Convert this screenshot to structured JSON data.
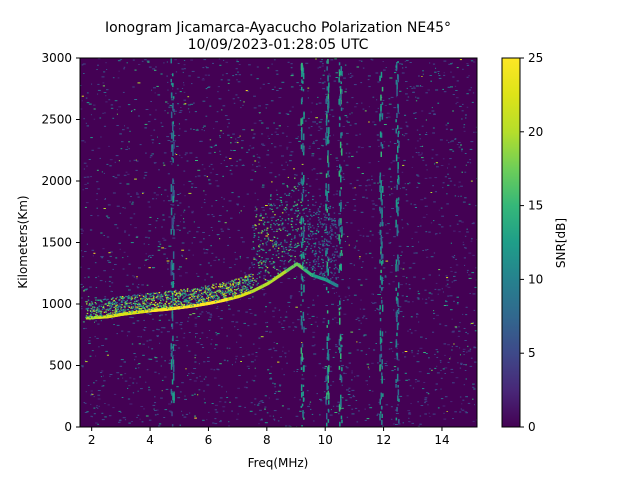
{
  "chart_data": {
    "type": "heatmap",
    "title": "Ionogram Jicamarca-Ayacucho Polarization NE45°",
    "subtitle": "10/09/2023-01:28:05 UTC",
    "xlabel": "Freq(MHz)",
    "ylabel": "Kilometers(Km)",
    "xlim": [
      1.6,
      15.2
    ],
    "ylim": [
      0,
      3000
    ],
    "xticks": [
      2,
      4,
      6,
      8,
      10,
      12,
      14
    ],
    "yticks": [
      0,
      500,
      1000,
      1500,
      2000,
      2500,
      3000
    ],
    "grid": false,
    "colorscale": "viridis",
    "colorbar": {
      "label": "SNR[dB]",
      "min": 0,
      "max": 25,
      "ticks": [
        0,
        5,
        10,
        15,
        20,
        25
      ]
    },
    "trace_points": [
      {
        "freq": 1.8,
        "range_km": 890,
        "snr": 20
      },
      {
        "freq": 2.5,
        "range_km": 900,
        "snr": 22
      },
      {
        "freq": 3.0,
        "range_km": 920,
        "snr": 22
      },
      {
        "freq": 3.5,
        "range_km": 935,
        "snr": 23
      },
      {
        "freq": 4.0,
        "range_km": 950,
        "snr": 24
      },
      {
        "freq": 4.5,
        "range_km": 960,
        "snr": 24
      },
      {
        "freq": 5.0,
        "range_km": 975,
        "snr": 24
      },
      {
        "freq": 5.5,
        "range_km": 990,
        "snr": 24
      },
      {
        "freq": 6.0,
        "range_km": 1010,
        "snr": 24
      },
      {
        "freq": 6.5,
        "range_km": 1035,
        "snr": 24
      },
      {
        "freq": 7.0,
        "range_km": 1065,
        "snr": 23
      },
      {
        "freq": 7.5,
        "range_km": 1110,
        "snr": 21
      },
      {
        "freq": 8.0,
        "range_km": 1170,
        "snr": 20
      },
      {
        "freq": 8.5,
        "range_km": 1250,
        "snr": 19
      },
      {
        "freq": 9.0,
        "range_km": 1330,
        "snr": 18
      },
      {
        "freq": 9.5,
        "range_km": 1240,
        "snr": 14
      },
      {
        "freq": 10.0,
        "range_km": 1200,
        "snr": 12
      },
      {
        "freq": 10.4,
        "range_km": 1150,
        "snr": 10
      }
    ]
  }
}
